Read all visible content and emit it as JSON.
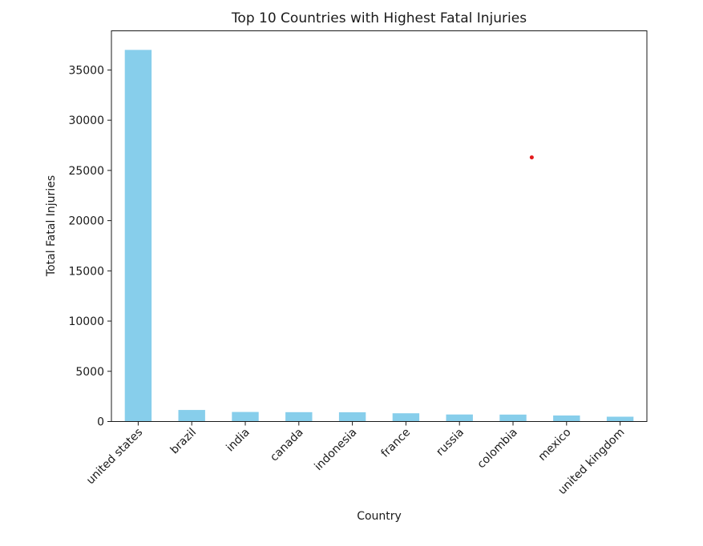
{
  "chart_data": {
    "type": "bar",
    "title": "Top 10 Countries with Highest Fatal Injuries",
    "xlabel": "Country",
    "ylabel": "Total Fatal Injuries",
    "categories": [
      "united states",
      "brazil",
      "india",
      "canada",
      "indonesia",
      "france",
      "russia",
      "colombia",
      "mexico",
      "united kingdom"
    ],
    "values": [
      37000,
      1150,
      950,
      930,
      920,
      820,
      700,
      690,
      600,
      480
    ],
    "ylim": [
      0,
      38900
    ],
    "yticks": [
      0,
      5000,
      10000,
      15000,
      20000,
      25000,
      30000,
      35000
    ],
    "grid": false,
    "legend": "none",
    "bar_color": "#87ceeb",
    "marker": {
      "x_category_index": 7.35,
      "y": 26300,
      "color": "#e31a1c"
    }
  }
}
